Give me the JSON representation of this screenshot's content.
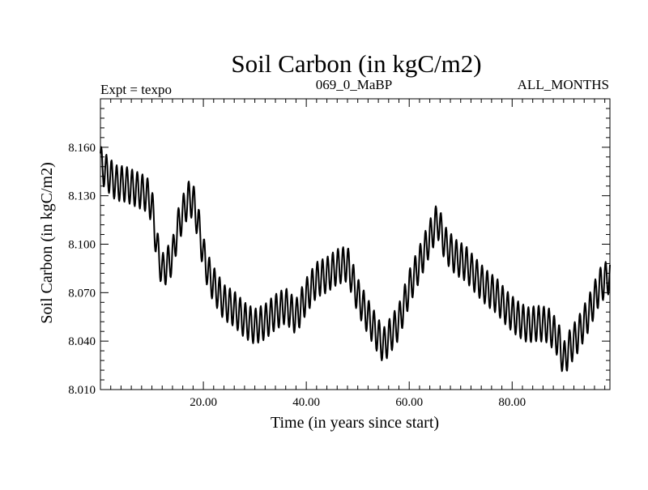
{
  "chart_data": {
    "type": "line",
    "title": "Soil Carbon (in kgC/m2)",
    "subtitle_left": "Expt = texpo",
    "subtitle_center": "069_0_MaBP",
    "subtitle_right": "ALL_MONTHS",
    "xlabel": "Time (in years since start)",
    "ylabel": "Soil Carbon (in kgC/m2)",
    "xlim": [
      0,
      99
    ],
    "ylim": [
      8.01,
      8.19
    ],
    "x_ticks": [
      20,
      40,
      60,
      80
    ],
    "x_tick_labels": [
      "20.00",
      "40.00",
      "60.00",
      "80.00"
    ],
    "y_ticks": [
      8.01,
      8.04,
      8.07,
      8.1,
      8.13,
      8.16
    ],
    "y_tick_labels": [
      "8.010",
      "8.040",
      "8.070",
      "8.100",
      "8.130",
      "8.160"
    ],
    "grid": false,
    "series": [
      {
        "name": "Soil Carbon",
        "annual_mean": {
          "x": [
            0,
            1,
            3,
            5,
            7,
            9,
            10,
            11,
            12,
            14,
            15,
            17,
            18,
            19,
            20,
            21,
            22,
            24,
            26,
            28,
            30,
            32,
            34,
            36,
            38,
            40,
            42,
            44,
            46,
            48,
            50,
            52,
            54,
            55,
            56,
            58,
            60,
            62,
            64,
            65.5,
            67,
            69,
            71,
            73,
            75,
            77,
            79,
            81,
            83,
            85,
            87,
            89,
            90,
            91,
            93,
            95,
            97,
            99
          ],
          "y": [
            8.15,
            8.145,
            8.138,
            8.137,
            8.134,
            8.131,
            8.124,
            8.098,
            8.083,
            8.092,
            8.11,
            8.128,
            8.127,
            8.113,
            8.094,
            8.082,
            8.075,
            8.064,
            8.06,
            8.053,
            8.049,
            8.052,
            8.058,
            8.062,
            8.055,
            8.068,
            8.078,
            8.081,
            8.086,
            8.088,
            8.068,
            8.055,
            8.043,
            8.037,
            8.042,
            8.052,
            8.073,
            8.088,
            8.104,
            8.115,
            8.1,
            8.092,
            8.088,
            8.08,
            8.073,
            8.068,
            8.06,
            8.054,
            8.05,
            8.051,
            8.05,
            8.041,
            8.028,
            8.035,
            8.045,
            8.058,
            8.074,
            8.081
          ]
        },
        "seasonal_amplitude": 0.011,
        "samples_per_year": 12
      }
    ]
  }
}
